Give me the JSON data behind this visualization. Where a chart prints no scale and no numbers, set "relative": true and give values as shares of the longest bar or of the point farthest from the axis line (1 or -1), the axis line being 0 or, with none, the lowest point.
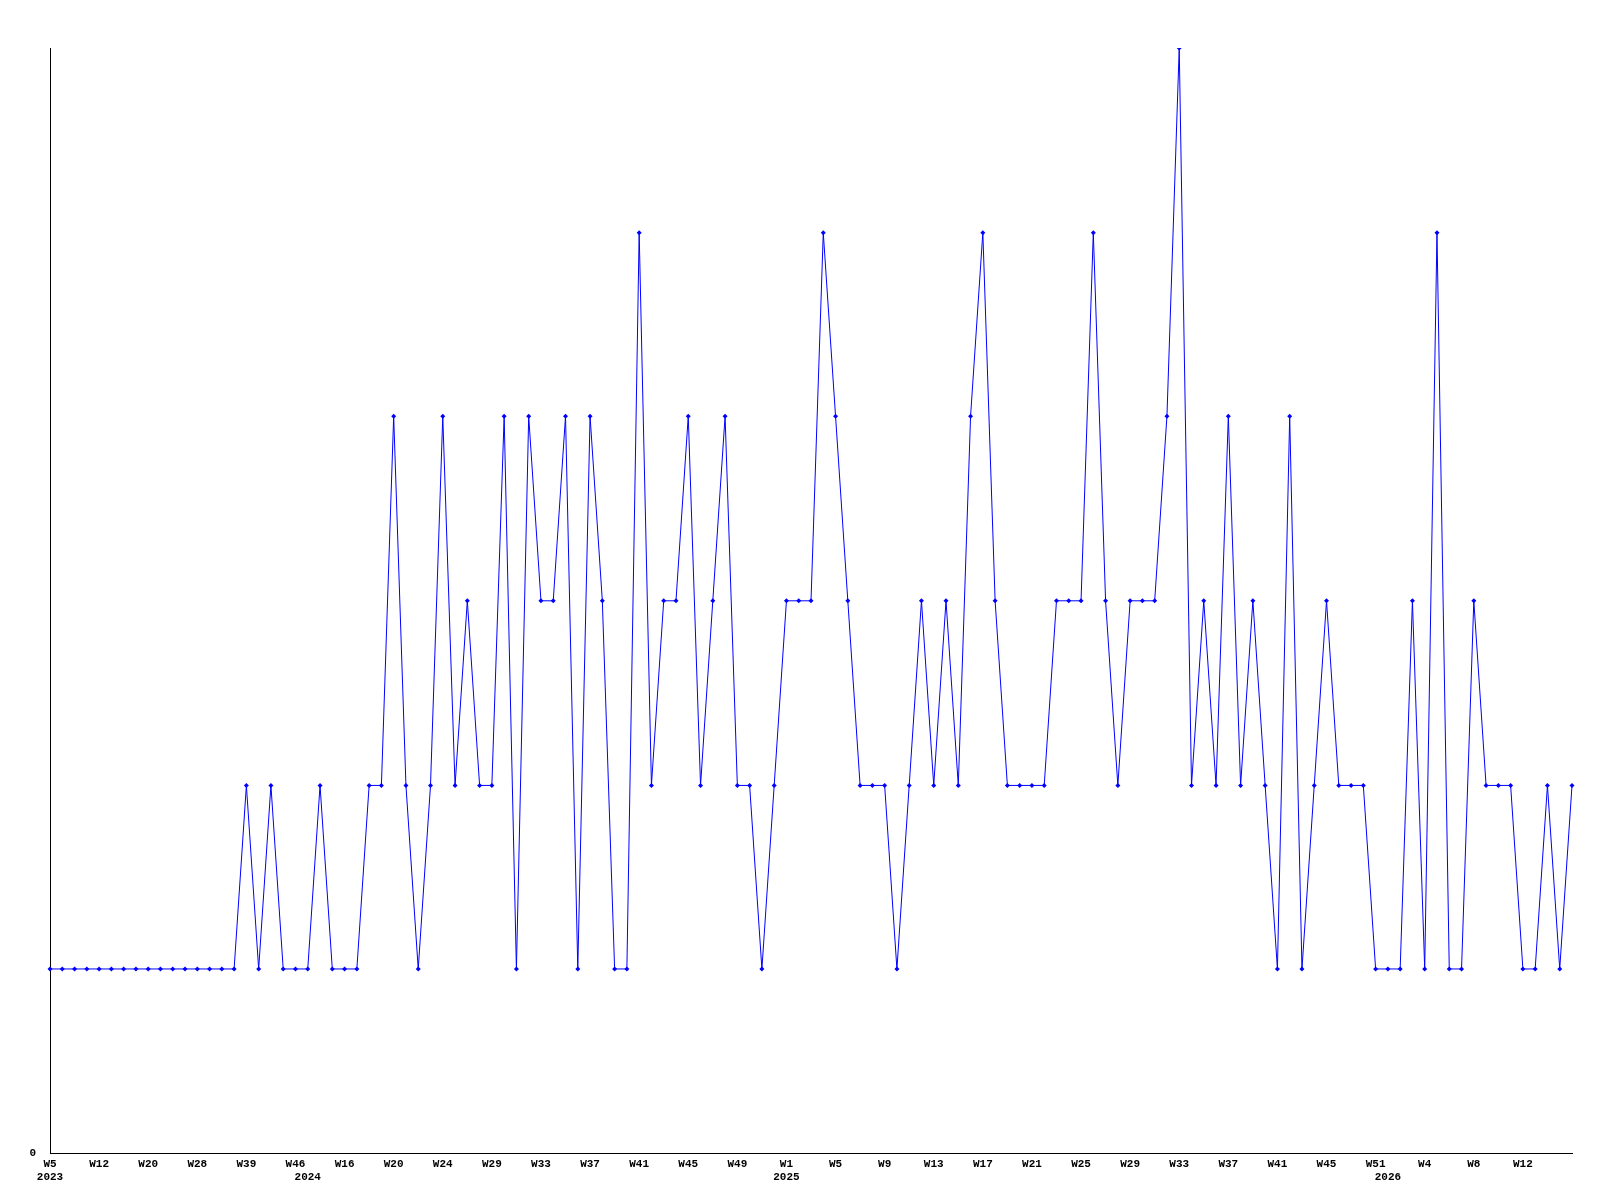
{
  "chart_data": {
    "type": "line",
    "relative": true,
    "marker": "diamond",
    "grid": false,
    "legend": false,
    "line_style": "solid",
    "categories": [
      "W5\n2023",
      null,
      null,
      null,
      "W12",
      null,
      null,
      null,
      "W20",
      null,
      null,
      null,
      "W28",
      null,
      null,
      null,
      "W39",
      null,
      null,
      null,
      "W46",
      "\n2024",
      null,
      null,
      "W16",
      null,
      null,
      null,
      "W20",
      null,
      null,
      null,
      "W24",
      null,
      null,
      null,
      "W29",
      null,
      null,
      null,
      "W33",
      null,
      null,
      null,
      "W37",
      null,
      null,
      null,
      "W41",
      null,
      null,
      null,
      "W45",
      null,
      null,
      null,
      "W49",
      null,
      null,
      null,
      "W1\n2025",
      null,
      null,
      null,
      "W5",
      null,
      null,
      null,
      "W9",
      null,
      null,
      null,
      "W13",
      null,
      null,
      null,
      "W17",
      null,
      null,
      null,
      "W21",
      null,
      null,
      null,
      "W25",
      null,
      null,
      null,
      "W29",
      null,
      null,
      null,
      "W33",
      null,
      null,
      null,
      "W37",
      null,
      null,
      null,
      "W41",
      null,
      null,
      null,
      "W45",
      null,
      null,
      null,
      "W51",
      "\n2026",
      null,
      null,
      "W4",
      null,
      null,
      null,
      "W8",
      null,
      null,
      null,
      "W12",
      null,
      null,
      null,
      null
    ],
    "series": [
      {
        "color": "#0000ff",
        "values": [
          0.167,
          0.167,
          0.167,
          0.167,
          0.167,
          0.167,
          0.167,
          0.167,
          0.167,
          0.167,
          0.167,
          0.167,
          0.167,
          0.167,
          0.167,
          0.167,
          0.333,
          0.167,
          0.333,
          0.167,
          0.167,
          0.167,
          0.333,
          0.167,
          0.167,
          0.167,
          0.333,
          0.333,
          0.667,
          0.333,
          0.167,
          0.333,
          0.667,
          0.333,
          0.5,
          0.333,
          0.333,
          0.667,
          0.167,
          0.667,
          0.5,
          0.5,
          0.667,
          0.167,
          0.667,
          0.5,
          0.167,
          0.167,
          0.833,
          0.333,
          0.5,
          0.5,
          0.667,
          0.333,
          0.5,
          0.667,
          0.333,
          0.333,
          0.167,
          0.333,
          0.5,
          0.5,
          0.5,
          0.833,
          0.667,
          0.5,
          0.333,
          0.333,
          0.333,
          0.167,
          0.333,
          0.5,
          0.333,
          0.5,
          0.333,
          0.667,
          0.833,
          0.5,
          0.333,
          0.333,
          0.333,
          0.333,
          0.5,
          0.5,
          0.5,
          0.833,
          0.5,
          0.333,
          0.5,
          0.5,
          0.5,
          0.667,
          1,
          0.333,
          0.5,
          0.333,
          0.667,
          0.333,
          0.5,
          0.333,
          0.167,
          0.667,
          0.167,
          0.333,
          0.5,
          0.333,
          0.333,
          0.333,
          0.167,
          0.167,
          0.167,
          0.5,
          0.167,
          0.833,
          0.167,
          0.167,
          0.5,
          0.333,
          0.333,
          0.333,
          0.167,
          0.167,
          0.333,
          0.167,
          0.333
        ]
      }
    ],
    "annotations": [
      "0"
    ]
  }
}
